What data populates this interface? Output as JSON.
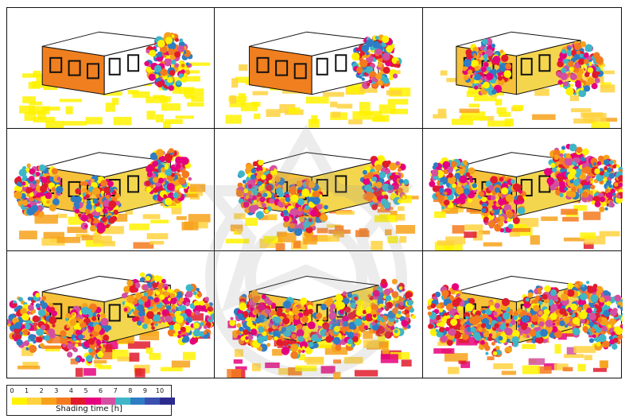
{
  "figure": {
    "panels": [
      {
        "trees": [
          [
            0.78,
            0.45
          ]
        ]
      },
      {
        "trees": [
          [
            0.78,
            0.45
          ]
        ]
      },
      {
        "trees": [
          [
            0.32,
            0.5
          ],
          [
            0.78,
            0.5
          ]
        ]
      },
      {
        "trees": [
          [
            0.15,
            0.5
          ],
          [
            0.43,
            0.62
          ],
          [
            0.78,
            0.4
          ]
        ]
      },
      {
        "trees": [
          [
            0.22,
            0.5
          ],
          [
            0.43,
            0.65
          ],
          [
            0.82,
            0.45
          ]
        ]
      },
      {
        "trees": [
          [
            0.15,
            0.45
          ],
          [
            0.4,
            0.62
          ],
          [
            0.74,
            0.35
          ],
          [
            0.9,
            0.45
          ]
        ]
      },
      {
        "trees": [
          [
            0.12,
            0.55
          ],
          [
            0.38,
            0.65
          ],
          [
            0.68,
            0.4
          ],
          [
            0.88,
            0.5
          ]
        ]
      },
      {
        "trees": [
          [
            0.2,
            0.55
          ],
          [
            0.4,
            0.6
          ],
          [
            0.62,
            0.55
          ],
          [
            0.85,
            0.45
          ]
        ]
      },
      {
        "trees": [
          [
            0.15,
            0.5
          ],
          [
            0.37,
            0.6
          ],
          [
            0.6,
            0.5
          ],
          [
            0.8,
            0.45
          ],
          [
            0.92,
            0.55
          ]
        ]
      }
    ]
  },
  "legend": {
    "ticks": [
      "0",
      "1",
      "2",
      "3",
      "4",
      "5",
      "6",
      "7",
      "8",
      "9",
      "10"
    ],
    "colors": [
      "#fff200",
      "#ffd23f",
      "#f7a21b",
      "#f47a1f",
      "#e11b2c",
      "#e6007e",
      "#d44fa0",
      "#3fb6c8",
      "#2e7dc4",
      "#3a4fb0",
      "#2b2b8f"
    ],
    "title": "Shading time [h]"
  }
}
